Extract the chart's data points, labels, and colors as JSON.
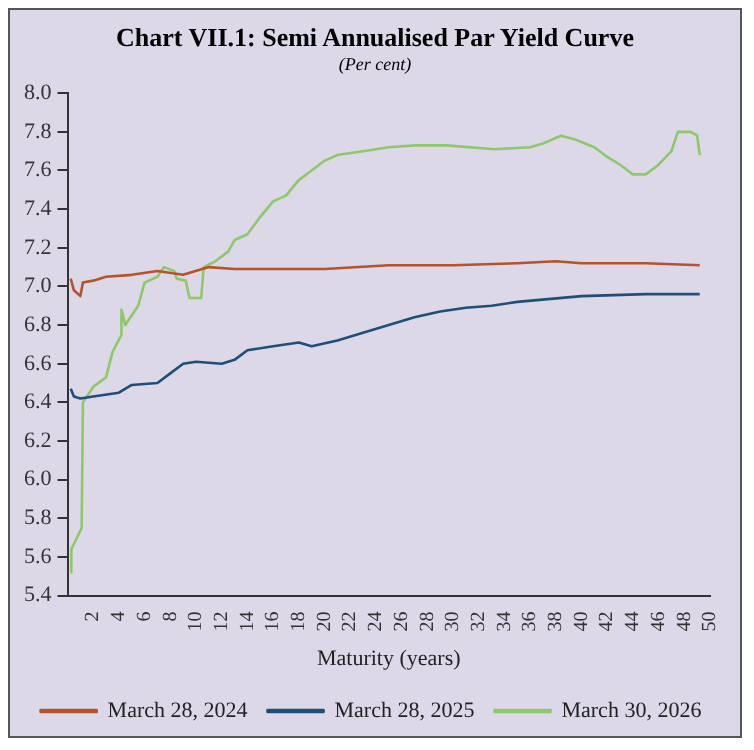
{
  "chart_data": {
    "type": "line",
    "title": "Chart VII.1: Semi Annualised Par Yield Curve",
    "subtitle": "(Per cent)",
    "xlabel": "Maturity (years)",
    "xlim": [
      0,
      50
    ],
    "xticks": [
      2,
      4,
      6,
      8,
      10,
      12,
      14,
      16,
      18,
      20,
      22,
      24,
      26,
      28,
      30,
      32,
      34,
      36,
      38,
      40,
      42,
      44,
      46,
      48,
      50
    ],
    "ylim": [
      5.4,
      8.0
    ],
    "yticks": [
      5.4,
      5.6,
      5.8,
      {
        "value": 6.0,
        "label": "6.0"
      },
      6.2,
      6.4,
      6.6,
      6.8,
      {
        "value": 7.0,
        "label": "7.0"
      },
      7.2,
      7.4,
      7.6,
      7.8,
      {
        "value": 8.0,
        "label": "8.0"
      }
    ],
    "grid": false,
    "legend": "bottom",
    "marker": "none",
    "line_style": "solid",
    "series": [
      {
        "name": "March 28, 2024",
        "color": "#b5532a",
        "x": [
          0.25,
          0.5,
          1.0,
          1.2,
          2,
          3,
          5,
          7,
          9,
          11,
          13,
          20,
          25,
          30,
          35,
          38,
          40,
          45,
          49.2
        ],
        "values": [
          7.04,
          6.98,
          6.95,
          7.02,
          7.03,
          7.05,
          7.06,
          7.08,
          7.06,
          7.1,
          7.09,
          7.09,
          7.11,
          7.11,
          7.12,
          7.13,
          7.12,
          7.12,
          7.11
        ]
      },
      {
        "name": "March 28, 2025",
        "color": "#1f4e79",
        "x": [
          0.25,
          0.5,
          1,
          2,
          4,
          5,
          7,
          8,
          9,
          10,
          12,
          13,
          14,
          16,
          18,
          19,
          21,
          23,
          25,
          27,
          29,
          31,
          33,
          35,
          40,
          45,
          49.2
        ],
        "values": [
          6.47,
          6.43,
          6.42,
          6.43,
          6.45,
          6.49,
          6.5,
          6.55,
          6.6,
          6.61,
          6.6,
          6.62,
          6.67,
          6.69,
          6.71,
          6.69,
          6.72,
          6.76,
          6.8,
          6.84,
          6.87,
          6.89,
          6.9,
          6.92,
          6.95,
          6.96,
          6.96
        ]
      },
      {
        "name": "March 30, 2026",
        "color": "#8dc86a",
        "x": [
          0.25,
          0.3,
          1.1,
          1.2,
          2,
          3,
          3.5,
          4.2,
          4.2,
          4.5,
          5.5,
          6,
          7,
          7.5,
          8.3,
          8.5,
          9.2,
          9.5,
          10.4,
          10.6,
          11.5,
          12.5,
          13,
          14,
          15,
          16,
          17,
          18,
          19,
          20,
          21,
          23,
          25,
          27,
          29.5,
          33.2,
          36,
          37,
          38.4,
          39.5,
          41,
          42,
          43,
          44,
          45,
          46,
          47,
          47.5,
          48.5,
          49,
          49.2
        ],
        "values": [
          5.52,
          5.64,
          5.75,
          6.4,
          6.48,
          6.53,
          6.66,
          6.75,
          6.88,
          6.8,
          6.9,
          7.02,
          7.05,
          7.1,
          7.08,
          7.04,
          7.03,
          6.94,
          6.94,
          7.1,
          7.13,
          7.18,
          7.24,
          7.27,
          7.36,
          7.44,
          7.47,
          7.55,
          7.6,
          7.65,
          7.68,
          7.7,
          7.72,
          7.73,
          7.73,
          7.71,
          7.72,
          7.74,
          7.78,
          7.76,
          7.72,
          7.67,
          7.63,
          7.58,
          7.58,
          7.63,
          7.7,
          7.8,
          7.8,
          7.78,
          7.68
        ]
      }
    ]
  }
}
